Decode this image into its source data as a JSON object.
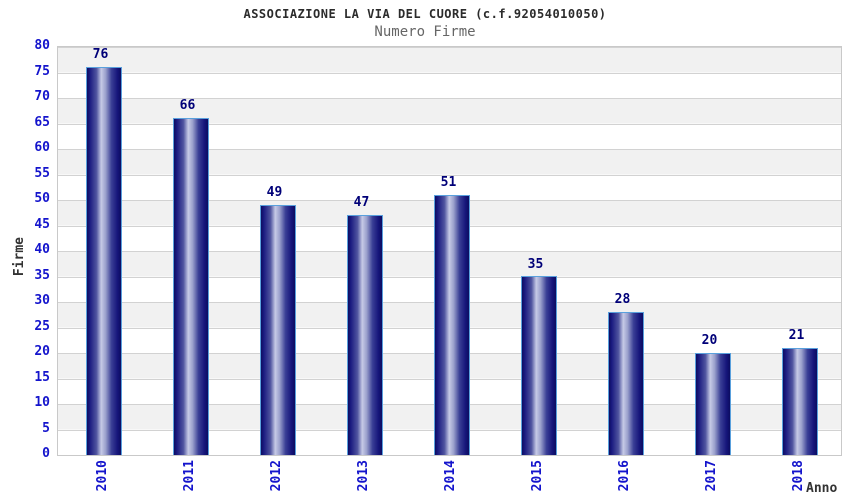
{
  "chart_data": {
    "type": "bar",
    "title": "ASSOCIAZIONE LA VIA DEL CUORE (c.f.92054010050)",
    "subtitle": "Numero Firme",
    "xlabel": "Anno",
    "ylabel": "Firme",
    "categories": [
      "2010",
      "2011",
      "2012",
      "2013",
      "2014",
      "2015",
      "2016",
      "2017",
      "2018"
    ],
    "values": [
      76,
      66,
      49,
      47,
      51,
      35,
      28,
      20,
      21
    ],
    "ylim": [
      0,
      80
    ],
    "ytick_step": 5,
    "grid": true,
    "band_rows": true,
    "legend_position": "none",
    "colors": {
      "bar_dark": "#0d0d60",
      "bar_highlight": "#c6cae6",
      "bar_border": "#59a0dd",
      "tick_label": "#1414cc",
      "value_label": "#000078",
      "band": "#f1f1f1",
      "gridline": "#d2d2d2",
      "title_text": "#2b2b2b",
      "subtitle_text": "#666666"
    }
  }
}
